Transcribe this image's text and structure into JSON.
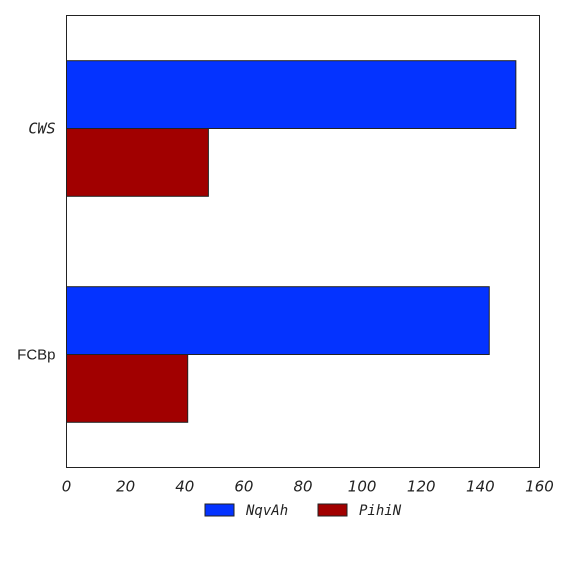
{
  "chart_data": {
    "type": "bar",
    "orientation": "horizontal",
    "categories": [
      "CWS",
      "FCBp"
    ],
    "category_label_styles": [
      "italic",
      "normal"
    ],
    "series": [
      {
        "name": "NqvAh",
        "values": [
          152,
          143
        ],
        "color": "#0433ff"
      },
      {
        "name": "PihiN",
        "values": [
          48,
          41
        ],
        "color": "#a10000"
      }
    ],
    "title": "",
    "xlabel": "",
    "ylabel": "",
    "xlim": [
      0,
      160
    ],
    "xticks": [
      0,
      20,
      40,
      60,
      80,
      100,
      120,
      140,
      160
    ],
    "grid": false,
    "legend_position": "bottom-center"
  }
}
